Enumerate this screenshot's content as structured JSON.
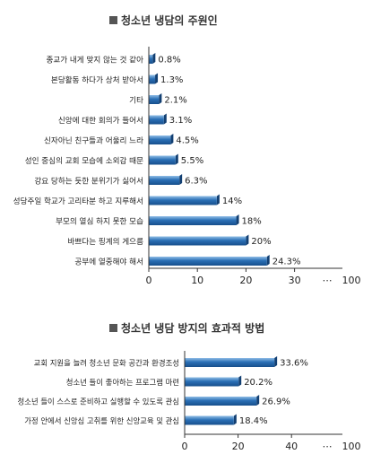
{
  "chart_data": [
    {
      "type": "bar",
      "orientation": "horizontal",
      "title": "청소년 냉담의 주원인",
      "categories": [
        "종교가 내게 맞지 않는 것 같아",
        "본당활동 하다가 상처 받아서",
        "기타",
        "신앙에 대한 회의가 들어서",
        "신자아닌 친구들과 어울리 느라",
        "성인 중심의 교회 모습에 소외감 때문",
        "강요 당하는 듯한 분위기가 싫어서",
        "성당주일 학교가 고리타분 하고 지루해서",
        "부모의 열심 하지 못한 모습",
        "바쁘다는 핑계의 게으름",
        "공부에 열중해야 해서"
      ],
      "values": [
        0.8,
        1.3,
        2.1,
        3.1,
        4.5,
        5.5,
        6.3,
        14,
        18,
        20,
        24.3
      ],
      "value_labels": [
        "0.8%",
        "1.3%",
        "2.1%",
        "3.1%",
        "4.5%",
        "5.5%",
        "6.3%",
        "14%",
        "18%",
        "20%",
        "24.3%"
      ],
      "x_ticks": [
        0,
        10,
        20,
        30
      ],
      "x_end_label": "100",
      "x_break_label": "⋯",
      "xlim": [
        0,
        40
      ],
      "grid": false,
      "bar_color": "#2a6fb5"
    },
    {
      "type": "bar",
      "orientation": "horizontal",
      "title": "청소년 냉담 방지의 효과적 방법",
      "categories": [
        "교회 지원을 늘려 청소년 문화 공간과 환경조성",
        "청소년 들이 좋아하는 프로그램 마련",
        "청소년 들이 스스로 준비하고 실행할 수 있도록 관심",
        "가정 안에서 신앙심 고취를 위한 신앙교육 및 관심"
      ],
      "values": [
        33.6,
        20.2,
        26.9,
        18.4
      ],
      "value_labels": [
        "33.6%",
        "20.2%",
        "26.9%",
        "18.4%"
      ],
      "x_ticks": [
        0,
        20,
        40
      ],
      "x_end_label": "100",
      "x_break_label": "⋯",
      "xlim": [
        0,
        50
      ],
      "grid": false,
      "bar_color": "#2a6fb5"
    }
  ]
}
